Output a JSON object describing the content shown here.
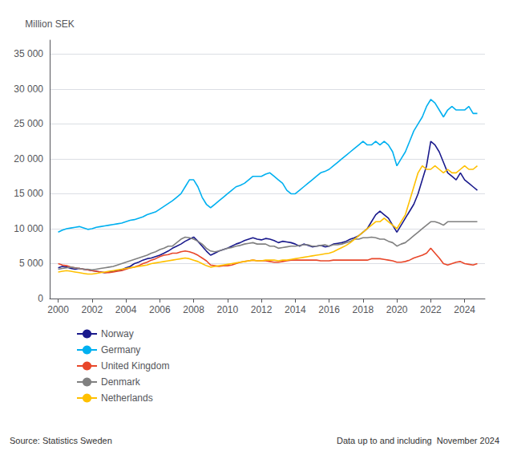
{
  "chart_data": {
    "type": "line",
    "ylabel": "Million SEK",
    "annotations": [
      "Source: Statistics Sweden",
      "Data up to and including  November 2024"
    ],
    "xlim": [
      1999.5,
      2025.2
    ],
    "xticks": [
      2000,
      2002,
      2004,
      2006,
      2008,
      2010,
      2012,
      2014,
      2016,
      2018,
      2020,
      2022,
      2024
    ],
    "ylim": [
      0,
      37000
    ],
    "yticks": [
      0,
      {
        "value": 5000,
        "label": "5 000"
      },
      {
        "value": 10000,
        "label": "10 000"
      },
      {
        "value": 15000,
        "label": "15 000"
      },
      {
        "value": 20000,
        "label": "20 000"
      },
      {
        "value": 25000,
        "label": "25 000"
      },
      {
        "value": 30000,
        "label": "30 000"
      },
      {
        "value": 35000,
        "label": "35 000"
      }
    ],
    "grid": true,
    "legend": "bottom",
    "x": [
      2000.0,
      2000.25,
      2000.5,
      2000.75,
      2001.0,
      2001.25,
      2001.5,
      2001.75,
      2002.0,
      2002.25,
      2002.5,
      2002.75,
      2003.0,
      2003.25,
      2003.5,
      2003.75,
      2004.0,
      2004.25,
      2004.5,
      2004.75,
      2005.0,
      2005.25,
      2005.5,
      2005.75,
      2006.0,
      2006.25,
      2006.5,
      2006.75,
      2007.0,
      2007.25,
      2007.5,
      2007.75,
      2008.0,
      2008.25,
      2008.5,
      2008.75,
      2009.0,
      2009.25,
      2009.5,
      2009.75,
      2010.0,
      2010.25,
      2010.5,
      2010.75,
      2011.0,
      2011.25,
      2011.5,
      2011.75,
      2012.0,
      2012.25,
      2012.5,
      2012.75,
      2013.0,
      2013.25,
      2013.5,
      2013.75,
      2014.0,
      2014.25,
      2014.5,
      2014.75,
      2015.0,
      2015.25,
      2015.5,
      2015.75,
      2016.0,
      2016.25,
      2016.5,
      2016.75,
      2017.0,
      2017.25,
      2017.5,
      2017.75,
      2018.0,
      2018.25,
      2018.5,
      2018.75,
      2019.0,
      2019.25,
      2019.5,
      2019.75,
      2020.0,
      2020.25,
      2020.5,
      2020.75,
      2021.0,
      2021.25,
      2021.5,
      2021.75,
      2022.0,
      2022.25,
      2022.5,
      2022.75,
      2023.0,
      2023.25,
      2023.5,
      2023.75,
      2024.0,
      2024.25,
      2024.5,
      2024.75
    ],
    "series": [
      {
        "name": "Norway",
        "color": "#1a1a8c",
        "values": [
          4400,
          4600,
          4500,
          4300,
          4200,
          4300,
          4200,
          4100,
          4000,
          3900,
          3800,
          3700,
          3800,
          3900,
          4000,
          4100,
          4400,
          4600,
          5000,
          5200,
          5500,
          5700,
          5800,
          6000,
          6200,
          6500,
          6800,
          7200,
          7500,
          7800,
          8200,
          8500,
          8800,
          8200,
          7500,
          6800,
          6200,
          6500,
          6800,
          7000,
          7200,
          7500,
          7800,
          8000,
          8300,
          8500,
          8700,
          8500,
          8400,
          8600,
          8500,
          8300,
          8000,
          8200,
          8100,
          8000,
          7800,
          7500,
          7800,
          7600,
          7400,
          7500,
          7600,
          7400,
          7500,
          7800,
          7900,
          8000,
          8200,
          8500,
          8700,
          9000,
          9500,
          10000,
          11000,
          12000,
          12500,
          12000,
          11500,
          10500,
          9500,
          10500,
          11500,
          12500,
          13500,
          15000,
          17000,
          19000,
          22500,
          22000,
          21000,
          19500,
          18000,
          17500,
          17000,
          18000,
          17000,
          16500,
          16000,
          15500
        ]
      },
      {
        "name": "Germany",
        "color": "#00b0f0",
        "values": [
          9500,
          9800,
          10000,
          10100,
          10200,
          10300,
          10100,
          9900,
          10000,
          10200,
          10300,
          10400,
          10500,
          10600,
          10700,
          10800,
          11000,
          11200,
          11300,
          11500,
          11700,
          12000,
          12200,
          12400,
          12800,
          13200,
          13600,
          14000,
          14500,
          15000,
          16000,
          17000,
          17000,
          16000,
          14500,
          13500,
          13000,
          13500,
          14000,
          14500,
          15000,
          15500,
          16000,
          16200,
          16500,
          17000,
          17500,
          17500,
          17500,
          17800,
          18000,
          17500,
          17000,
          16500,
          15500,
          15000,
          15000,
          15500,
          16000,
          16500,
          17000,
          17500,
          18000,
          18200,
          18500,
          19000,
          19500,
          20000,
          20500,
          21000,
          21500,
          22000,
          22500,
          22000,
          22000,
          22500,
          22000,
          22500,
          22000,
          21000,
          19000,
          20000,
          21000,
          22500,
          24000,
          25000,
          26000,
          27500,
          28500,
          28000,
          27000,
          26000,
          27000,
          27500,
          27000,
          27000,
          27000,
          27500,
          26500,
          26500
        ]
      },
      {
        "name": "United Kingdom",
        "color": "#e8472a",
        "values": [
          5000,
          4800,
          4700,
          4500,
          4400,
          4300,
          4200,
          4100,
          4000,
          3900,
          3800,
          3700,
          3700,
          3800,
          3900,
          4000,
          4200,
          4400,
          4500,
          4700,
          5000,
          5200,
          5500,
          5700,
          6000,
          6200,
          6300,
          6500,
          6500,
          6700,
          6800,
          6700,
          6500,
          6200,
          5800,
          5400,
          4800,
          4700,
          4600,
          4700,
          4700,
          4800,
          5000,
          5200,
          5300,
          5400,
          5500,
          5400,
          5400,
          5400,
          5300,
          5200,
          5200,
          5300,
          5400,
          5500,
          5500,
          5500,
          5500,
          5500,
          5500,
          5500,
          5400,
          5400,
          5400,
          5500,
          5500,
          5500,
          5500,
          5500,
          5500,
          5500,
          5500,
          5500,
          5700,
          5700,
          5700,
          5600,
          5500,
          5400,
          5200,
          5200,
          5300,
          5500,
          5800,
          6000,
          6200,
          6500,
          7200,
          6500,
          5800,
          5000,
          4800,
          5000,
          5200,
          5300,
          5000,
          4900,
          4800,
          5000
        ]
      },
      {
        "name": "Denmark",
        "color": "#808080",
        "values": [
          4200,
          4300,
          4400,
          4500,
          4400,
          4300,
          4200,
          4200,
          4100,
          4200,
          4300,
          4400,
          4500,
          4600,
          4800,
          5000,
          5200,
          5400,
          5600,
          5800,
          6000,
          6200,
          6500,
          6700,
          7000,
          7200,
          7500,
          7500,
          8000,
          8500,
          8800,
          8700,
          8500,
          8200,
          7800,
          7200,
          6800,
          6700,
          6800,
          7000,
          7200,
          7300,
          7500,
          7600,
          7800,
          7900,
          8000,
          7800,
          7800,
          7800,
          7500,
          7500,
          7200,
          7300,
          7400,
          7500,
          7500,
          7600,
          7700,
          7700,
          7500,
          7500,
          7600,
          7700,
          7500,
          7700,
          7700,
          7800,
          8000,
          8200,
          8500,
          8500,
          8700,
          8700,
          8800,
          8700,
          8500,
          8500,
          8200,
          8000,
          7500,
          7800,
          8000,
          8500,
          9000,
          9500,
          10000,
          10500,
          11000,
          11000,
          10800,
          10500,
          11000,
          11000,
          11000,
          11000,
          11000,
          11000,
          11000,
          11000
        ]
      },
      {
        "name": "Netherlands",
        "color": "#ffc000",
        "values": [
          3800,
          3900,
          4000,
          3900,
          3800,
          3700,
          3600,
          3500,
          3500,
          3600,
          3700,
          3800,
          3900,
          4000,
          4100,
          4200,
          4300,
          4400,
          4500,
          4600,
          4700,
          4800,
          5000,
          5100,
          5200,
          5300,
          5400,
          5500,
          5600,
          5700,
          5800,
          5700,
          5500,
          5300,
          5000,
          4700,
          4500,
          4600,
          4700,
          4800,
          4900,
          5000,
          5100,
          5200,
          5300,
          5400,
          5500,
          5400,
          5400,
          5500,
          5500,
          5500,
          5400,
          5500,
          5500,
          5600,
          5700,
          5800,
          5900,
          6000,
          6100,
          6200,
          6300,
          6400,
          6500,
          6700,
          7000,
          7300,
          7600,
          8000,
          8500,
          9000,
          9500,
          10000,
          10500,
          11000,
          11000,
          11500,
          11000,
          10500,
          10000,
          11000,
          12000,
          14000,
          16000,
          18000,
          19000,
          18500,
          18500,
          19000,
          18500,
          18000,
          18500,
          18000,
          18000,
          18500,
          19000,
          18500,
          18500,
          19000
        ]
      }
    ]
  }
}
